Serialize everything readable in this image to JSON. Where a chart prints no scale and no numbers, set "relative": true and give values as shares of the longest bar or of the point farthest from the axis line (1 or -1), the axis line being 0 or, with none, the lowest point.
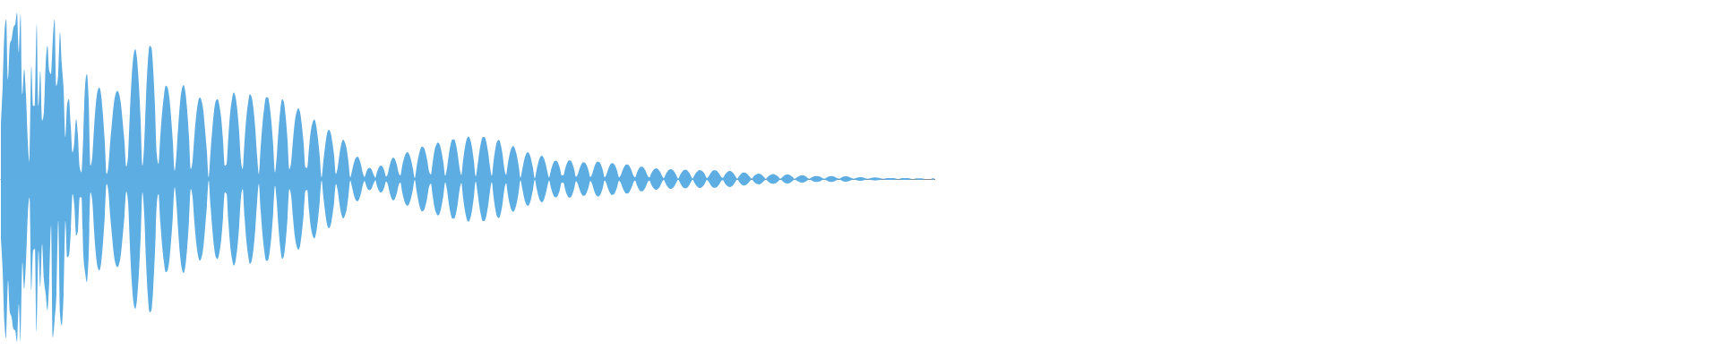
{
  "chart_data": {
    "type": "area",
    "relative": true,
    "categories": [
      null,
      null,
      null,
      null,
      null,
      null,
      null,
      null,
      null,
      null,
      null,
      null,
      null,
      null,
      null,
      null,
      null,
      null,
      null,
      null,
      null,
      null,
      null,
      null,
      null,
      null,
      null,
      null,
      null,
      null,
      null,
      null,
      null,
      null,
      null,
      null,
      null,
      null,
      null,
      null,
      null,
      null,
      null,
      null,
      null,
      null,
      null,
      null,
      null,
      null,
      null,
      null,
      null,
      null,
      null,
      null,
      null,
      null,
      null,
      null,
      null,
      null,
      null,
      null,
      null,
      null,
      null,
      null,
      null,
      null,
      null,
      null,
      null,
      null,
      null,
      null,
      null,
      null,
      null,
      null,
      null,
      null,
      null,
      null,
      null,
      null,
      null,
      null,
      null,
      null,
      null,
      null,
      null,
      null,
      null,
      null,
      null,
      null,
      null,
      null,
      null,
      null,
      null,
      null,
      null,
      null,
      null,
      null,
      null,
      null,
      null,
      null,
      null,
      null,
      null,
      null,
      null,
      null,
      null,
      null,
      null,
      null,
      null,
      null,
      null,
      null,
      null,
      null,
      null,
      null,
      null,
      null,
      null,
      null,
      null,
      null,
      null,
      null,
      null,
      null,
      null,
      null,
      null,
      null,
      null,
      null,
      null,
      null,
      null,
      null,
      null,
      null,
      null,
      null,
      null,
      null,
      null,
      null,
      null,
      null,
      null,
      null,
      null,
      null,
      null,
      null,
      null,
      null,
      null,
      null,
      null,
      null,
      null,
      null,
      null,
      null,
      null,
      null,
      null,
      null,
      null,
      null,
      null,
      null,
      null,
      null,
      null,
      null,
      null,
      null,
      null,
      null,
      null,
      null,
      null,
      null,
      null,
      null,
      null,
      null,
      null,
      null,
      null,
      null,
      null,
      null,
      null,
      null,
      null,
      null,
      null,
      null,
      null,
      null,
      null,
      null,
      null,
      null,
      null,
      null,
      null,
      null,
      null,
      null,
      null,
      null,
      null,
      null,
      null,
      null,
      null,
      null,
      null,
      null,
      null,
      null,
      null,
      null,
      null,
      null,
      null,
      null,
      null,
      null,
      null,
      null,
      null,
      null,
      null,
      null,
      null,
      null,
      null,
      null,
      null,
      null,
      null,
      null,
      null,
      null,
      null,
      null,
      null,
      null,
      null,
      null,
      null,
      null,
      null,
      null,
      null,
      null,
      null,
      null,
      null,
      null,
      null,
      null,
      null,
      null,
      null,
      null,
      null,
      null,
      null,
      null,
      null,
      null,
      null,
      null,
      null,
      null,
      null,
      null,
      null,
      null,
      null,
      null,
      null,
      null,
      null,
      null,
      null,
      null,
      null,
      null,
      null,
      null,
      null,
      null,
      null,
      null,
      null,
      null,
      null,
      null,
      null,
      null,
      null,
      null,
      null,
      null,
      null,
      null,
      null,
      null,
      null,
      null,
      null,
      null,
      null,
      null,
      null,
      null,
      null,
      null,
      null,
      null,
      null,
      null,
      null,
      null,
      null,
      null,
      null,
      null,
      null,
      null,
      null,
      null,
      null,
      null,
      null,
      null,
      null,
      null,
      null,
      null,
      null,
      null,
      null,
      null,
      null,
      null,
      null,
      null,
      null,
      null,
      null,
      null,
      null,
      null,
      null,
      null,
      null,
      null,
      null,
      null,
      null,
      null,
      null,
      null,
      null,
      null,
      null,
      null,
      null,
      null,
      null,
      null,
      null,
      null,
      null,
      null,
      null,
      null,
      null,
      null,
      null,
      null,
      null,
      null,
      null,
      null,
      null,
      null,
      null,
      null,
      null,
      null,
      null,
      null,
      null,
      null,
      null,
      null,
      null,
      null,
      null,
      null,
      null,
      null,
      null,
      null,
      null,
      null,
      null,
      null,
      null,
      null,
      null,
      null,
      null,
      null,
      null,
      null,
      null,
      null,
      null,
      null,
      null,
      null,
      null,
      null,
      null,
      null,
      null,
      null,
      null,
      null,
      null,
      null,
      null,
      null,
      null,
      null,
      null,
      null,
      null,
      null,
      null,
      null,
      null,
      null,
      null,
      null,
      null,
      null,
      null,
      null,
      null,
      null,
      null,
      null,
      null,
      null,
      null,
      null,
      null,
      null,
      null,
      null,
      null,
      null,
      null,
      null,
      null,
      null,
      null,
      null,
      null,
      null,
      null,
      null,
      null,
      null,
      null,
      null,
      null,
      null,
      null,
      null,
      null,
      null,
      null,
      null,
      null,
      null,
      null,
      null,
      null,
      null,
      null,
      null,
      null,
      null,
      null,
      null,
      null,
      null,
      null,
      null
    ],
    "series": [
      {
        "color": "#5dade2",
        "values": [
          0.33,
          0.56,
          0.88,
          0.96,
          0.6,
          0.81,
          0.84,
          0.91,
          0.93,
          1,
          0.76,
          0.99,
          0.51,
          0.66,
          0.51,
          0.23,
          0.1,
          0.68,
          0.44,
          0.44,
          0.93,
          0.44,
          0.65,
          0.35,
          0.4,
          0.69,
          0.8,
          0.65,
          0.63,
          0.84,
          0.96,
          0.56,
          0.63,
          0.88,
          0.69,
          0.54,
          0.25,
          0.45,
          0.48,
          0.32,
          0.16,
          0.22,
          0.36,
          0.26,
          0.07,
          0.04,
          0.26,
          0.56,
          0.63,
          0.47,
          0.08,
          0.13,
          0.31,
          0.45,
          0.53,
          0.55,
          0.5,
          0.38,
          0.22,
          0.03,
          0.075,
          0.22,
          0.34,
          0.45,
          0.51,
          0.53,
          0.51,
          0.45,
          0.34,
          0.22,
          0.075,
          0.14,
          0.4,
          0.61,
          0.74,
          0.78,
          0.72,
          0.57,
          0.35,
          0.08,
          0.21,
          0.49,
          0.7,
          0.8,
          0.79,
          0.66,
          0.44,
          0.15,
          0.09,
          0.26,
          0.4,
          0.5,
          0.56,
          0.55,
          0.49,
          0.37,
          0.22,
          0.05,
          0.15,
          0.32,
          0.46,
          0.54,
          0.565,
          0.52,
          0.41,
          0.25,
          0.06,
          0.11,
          0.26,
          0.38,
          0.46,
          0.49,
          0.47,
          0.41,
          0.29,
          0.16,
          0.01,
          0.16,
          0.3,
          0.41,
          0.47,
          0.48,
          0.44,
          0.36,
          0.23,
          0.08,
          0.09,
          0.26,
          0.4,
          0.48,
          0.52,
          0.49,
          0.41,
          0.28,
          0.11,
          0.06,
          0.23,
          0.37,
          0.46,
          0.51,
          0.49,
          0.42,
          0.3,
          0.14,
          0.03,
          0.19,
          0.33,
          0.43,
          0.49,
          0.49,
          0.44,
          0.34,
          0.2,
          0.04,
          0.14,
          0.3,
          0.42,
          0.48,
          0.46,
          0.37,
          0.23,
          0.06,
          0.1,
          0.23,
          0.34,
          0.4,
          0.425,
          0.4,
          0.32,
          0.21,
          0.07,
          0.066,
          0.19,
          0.29,
          0.34,
          0.357,
          0.32,
          0.24,
          0.13,
          0.01,
          0.11,
          0.2,
          0.27,
          0.296,
          0.28,
          0.22,
          0.14,
          0.03,
          0.07,
          0.15,
          0.21,
          0.237,
          0.22,
          0.18,
          0.1,
          0.01,
          0.05,
          0.095,
          0.125,
          0.134,
          0.12,
          0.085,
          0.036,
          0.012,
          0.043,
          0.063,
          0.067,
          0.054,
          0.027,
          0.008,
          0.044,
          0.07,
          0.081,
          0.074,
          0.05,
          0.015,
          0.034,
          0.082,
          0.116,
          0.129,
          0.117,
          0.085,
          0.036,
          0.021,
          0.079,
          0.124,
          0.153,
          0.161,
          0.145,
          0.11,
          0.06,
          0.005,
          0.07,
          0.13,
          0.175,
          0.195,
          0.19,
          0.16,
          0.11,
          0.046,
          0.028,
          0.1,
          0.17,
          0.206,
          0.219,
          0.204,
          0.16,
          0.097,
          0.02,
          0.066,
          0.147,
          0.207,
          0.238,
          0.238,
          0.207,
          0.146,
          0.066,
          0.024,
          0.115,
          0.19,
          0.24,
          0.256,
          0.236,
          0.185,
          0.107,
          0.015,
          0.078,
          0.16,
          0.22,
          0.253,
          0.251,
          0.218,
          0.156,
          0.072,
          0.019,
          0.11,
          0.183,
          0.227,
          0.235,
          0.206,
          0.147,
          0.062,
          0.025,
          0.095,
          0.152,
          0.187,
          0.197,
          0.179,
          0.14,
          0.079,
          0.008,
          0.056,
          0.111,
          0.147,
          0.161,
          0.15,
          0.115,
          0.063,
          0.004,
          0.055,
          0.101,
          0.132,
          0.14,
          0.126,
          0.093,
          0.045,
          0.009,
          0.052,
          0.087,
          0.107,
          0.11,
          0.095,
          0.064,
          0.022,
          0.023,
          0.064,
          0.096,
          0.112,
          0.11,
          0.09,
          0.057,
          0.013,
          0.028,
          0.063,
          0.089,
          0.101,
          0.098,
          0.08,
          0.05,
          0.012,
          0.029,
          0.066,
          0.093,
          0.105,
          0.102,
          0.083,
          0.051,
          0.01,
          0.028,
          0.061,
          0.085,
          0.096,
          0.093,
          0.076,
          0.047,
          0.011,
          0.023,
          0.053,
          0.075,
          0.087,
          0.086,
          0.074,
          0.051,
          0.021,
          0.01,
          0.038,
          0.06,
          0.073,
          0.074,
          0.065,
          0.045,
          0.019,
          0.009,
          0.033,
          0.051,
          0.062,
          0.065,
          0.057,
          0.041,
          0.019,
          0.006,
          0.027,
          0.045,
          0.056,
          0.059,
          0.054,
          0.041,
          0.022,
          0.003,
          0.022,
          0.04,
          0.053,
          0.057,
          0.053,
          0.04,
          0.022,
          0.003,
          0.02,
          0.037,
          0.049,
          0.054,
          0.051,
          0.041,
          0.025,
          0.005,
          0.015,
          0.033,
          0.047,
          0.053,
          0.053,
          0.045,
          0.031,
          0.012,
          0.007,
          0.024,
          0.038,
          0.046,
          0.048,
          0.043,
          0.032,
          0.016,
          0.002,
          0.016,
          0.029,
          0.037,
          0.039,
          0.035,
          0.026,
          0.013,
          0.002,
          0.014,
          0.024,
          0.03,
          0.032,
          0.029,
          0.022,
          0.011,
          0.001,
          0.012,
          0.021,
          0.027,
          0.029,
          0.027,
          0.021,
          0.012,
          0.001,
          0.009,
          0.019,
          0.025,
          0.027,
          0.025,
          0.019,
          0.011,
          0.001,
          0.008,
          0.015,
          0.02,
          0.022,
          0.021,
          0.016,
          0.009,
          0.001,
          0.006,
          0.012,
          0.016,
          0.018,
          0.017,
          0.015,
          0.01,
          0.003,
          0.003,
          0.01,
          0.015,
          0.018,
          0.018,
          0.015,
          0.01,
          0.004,
          0.002,
          0.008,
          0.013,
          0.016,
          0.016,
          0.014,
          0.01,
          0.005,
          0.001,
          0.005,
          0.008,
          0.011,
          0.011,
          0.01,
          0.007,
          0.003,
          0.001,
          0.004,
          0.007,
          0.008,
          0.009,
          0.008,
          0.007,
          0.004,
          0.001,
          0.002,
          0.004,
          0.005,
          0.005,
          0.005,
          0.005,
          0.004,
          0.002,
          0,
          0.003,
          0.005,
          0.005,
          0.005,
          0.005,
          0.004,
          0.002,
          0,
          0.002,
          0.004,
          0.004,
          0.004,
          0.004,
          0.002,
          0,
          0,
          0,
          0,
          0.004,
          0.004
        ]
      },
      {
        "color": "#5caee3",
        "values": [
          -0.36,
          -0.55,
          -0.87,
          -0.96,
          -0.61,
          -0.8,
          -0.83,
          -0.9,
          -0.91,
          -0.98,
          -0.75,
          -0.98,
          -0.5,
          -0.66,
          -0.5,
          -0.22,
          -0.11,
          -0.67,
          -0.43,
          -0.42,
          -0.92,
          -0.43,
          -0.65,
          -0.39,
          -0.6,
          -0.69,
          -0.79,
          -0.61,
          -0.28,
          -0.95,
          -0.85,
          -0.69,
          -0.25,
          -0.81,
          -0.88,
          -0.69,
          -0.25,
          -0.47,
          -0.46,
          -0.32,
          -0.09,
          -0.16,
          -0.34,
          -0.31,
          -0.11,
          -0.11,
          -0.45,
          -0.56,
          -0.62,
          -0.46,
          -0.08,
          -0.13,
          -0.31,
          -0.45,
          -0.53,
          -0.55,
          -0.5,
          -0.38,
          -0.22,
          -0.03,
          -0.075,
          -0.22,
          -0.34,
          -0.45,
          -0.51,
          -0.53,
          -0.51,
          -0.45,
          -0.34,
          -0.22,
          -0.075,
          -0.14,
          -0.4,
          -0.61,
          -0.74,
          -0.78,
          -0.72,
          -0.57,
          -0.35,
          -0.08,
          -0.21,
          -0.49,
          -0.7,
          -0.8,
          -0.79,
          -0.66,
          -0.44,
          -0.15,
          -0.09,
          -0.26,
          -0.4,
          -0.5,
          -0.56,
          -0.55,
          -0.49,
          -0.37,
          -0.22,
          -0.05,
          -0.15,
          -0.32,
          -0.46,
          -0.54,
          -0.565,
          -0.52,
          -0.41,
          -0.25,
          -0.06,
          -0.11,
          -0.26,
          -0.38,
          -0.46,
          -0.49,
          -0.47,
          -0.41,
          -0.29,
          -0.16,
          -0.01,
          -0.16,
          -0.3,
          -0.41,
          -0.47,
          -0.48,
          -0.44,
          -0.36,
          -0.23,
          -0.08,
          -0.09,
          -0.26,
          -0.4,
          -0.48,
          -0.52,
          -0.49,
          -0.41,
          -0.28,
          -0.11,
          -0.06,
          -0.23,
          -0.37,
          -0.46,
          -0.51,
          -0.49,
          -0.42,
          -0.3,
          -0.14,
          -0.03,
          -0.19,
          -0.33,
          -0.43,
          -0.49,
          -0.49,
          -0.44,
          -0.34,
          -0.2,
          -0.04,
          -0.14,
          -0.3,
          -0.42,
          -0.48,
          -0.46,
          -0.37,
          -0.23,
          -0.06,
          -0.1,
          -0.23,
          -0.34,
          -0.4,
          -0.425,
          -0.4,
          -0.32,
          -0.21,
          -0.07,
          -0.066,
          -0.19,
          -0.29,
          -0.34,
          -0.357,
          -0.32,
          -0.24,
          -0.13,
          -0.01,
          -0.11,
          -0.2,
          -0.27,
          -0.296,
          -0.28,
          -0.22,
          -0.14,
          -0.03,
          -0.07,
          -0.15,
          -0.21,
          -0.237,
          -0.22,
          -0.18,
          -0.1,
          -0.01,
          -0.05,
          -0.095,
          -0.125,
          -0.134,
          -0.12,
          -0.085,
          -0.036,
          -0.012,
          -0.043,
          -0.063,
          -0.067,
          -0.054,
          -0.027,
          -0.008,
          -0.044,
          -0.07,
          -0.081,
          -0.074,
          -0.05,
          -0.015,
          -0.034,
          -0.082,
          -0.116,
          -0.129,
          -0.117,
          -0.085,
          -0.036,
          -0.021,
          -0.079,
          -0.124,
          -0.153,
          -0.161,
          -0.145,
          -0.11,
          -0.06,
          -0.005,
          -0.07,
          -0.13,
          -0.175,
          -0.195,
          -0.19,
          -0.16,
          -0.11,
          -0.046,
          -0.028,
          -0.1,
          -0.17,
          -0.206,
          -0.219,
          -0.204,
          -0.16,
          -0.097,
          -0.02,
          -0.066,
          -0.147,
          -0.207,
          -0.238,
          -0.238,
          -0.207,
          -0.146,
          -0.066,
          -0.024,
          -0.115,
          -0.19,
          -0.24,
          -0.256,
          -0.236,
          -0.185,
          -0.107,
          -0.015,
          -0.078,
          -0.16,
          -0.22,
          -0.253,
          -0.251,
          -0.218,
          -0.156,
          -0.072,
          -0.019,
          -0.11,
          -0.183,
          -0.227,
          -0.235,
          -0.206,
          -0.147,
          -0.062,
          -0.025,
          -0.095,
          -0.152,
          -0.187,
          -0.197,
          -0.179,
          -0.14,
          -0.079,
          -0.008,
          -0.056,
          -0.111,
          -0.147,
          -0.161,
          -0.15,
          -0.115,
          -0.063,
          -0.004,
          -0.055,
          -0.101,
          -0.132,
          -0.14,
          -0.126,
          -0.093,
          -0.045,
          -0.009,
          -0.052,
          -0.087,
          -0.107,
          -0.11,
          -0.095,
          -0.064,
          -0.022,
          -0.023,
          -0.064,
          -0.096,
          -0.112,
          -0.11,
          -0.09,
          -0.057,
          -0.013,
          -0.028,
          -0.063,
          -0.089,
          -0.101,
          -0.098,
          -0.08,
          -0.05,
          -0.012,
          -0.029,
          -0.066,
          -0.093,
          -0.105,
          -0.102,
          -0.083,
          -0.051,
          -0.01,
          -0.028,
          -0.061,
          -0.085,
          -0.096,
          -0.093,
          -0.076,
          -0.047,
          -0.011,
          -0.023,
          -0.053,
          -0.075,
          -0.087,
          -0.086,
          -0.074,
          -0.051,
          -0.021,
          -0.01,
          -0.038,
          -0.06,
          -0.073,
          -0.074,
          -0.065,
          -0.045,
          -0.019,
          -0.009,
          -0.033,
          -0.051,
          -0.062,
          -0.065,
          -0.057,
          -0.041,
          -0.019,
          -0.006,
          -0.027,
          -0.045,
          -0.056,
          -0.059,
          -0.054,
          -0.041,
          -0.022,
          -0.003,
          -0.022,
          -0.04,
          -0.053,
          -0.057,
          -0.053,
          -0.04,
          -0.022,
          -0.003,
          -0.02,
          -0.037,
          -0.049,
          -0.054,
          -0.051,
          -0.041,
          -0.025,
          -0.005,
          -0.015,
          -0.033,
          -0.047,
          -0.053,
          -0.053,
          -0.045,
          -0.031,
          -0.012,
          -0.007,
          -0.024,
          -0.038,
          -0.046,
          -0.048,
          -0.043,
          -0.032,
          -0.016,
          -0.002,
          -0.016,
          -0.029,
          -0.037,
          -0.039,
          -0.035,
          -0.026,
          -0.013,
          -0.002,
          -0.014,
          -0.024,
          -0.03,
          -0.032,
          -0.029,
          -0.022,
          -0.011,
          -0.001,
          -0.012,
          -0.021,
          -0.027,
          -0.029,
          -0.027,
          -0.021,
          -0.012,
          -0.001,
          -0.009,
          -0.019,
          -0.025,
          -0.027,
          -0.025,
          -0.019,
          -0.011,
          -0.001,
          -0.008,
          -0.015,
          -0.02,
          -0.022,
          -0.021,
          -0.016,
          -0.009,
          -0.001,
          -0.006,
          -0.012,
          -0.016,
          -0.018,
          -0.017,
          -0.015,
          -0.01,
          -0.003,
          -0.003,
          -0.01,
          -0.015,
          -0.018,
          -0.018,
          -0.015,
          -0.01,
          -0.004,
          -0.002,
          -0.008,
          -0.013,
          -0.016,
          -0.016,
          -0.014,
          -0.01,
          -0.005,
          -0.001,
          -0.005,
          -0.008,
          -0.011,
          -0.011,
          -0.01,
          -0.007,
          -0.003,
          -0.001,
          -0.004,
          -0.007,
          -0.008,
          -0.009,
          -0.008,
          -0.007,
          -0.004,
          -0.001,
          -0.002,
          -0.004,
          -0.005,
          -0.005,
          -0.005,
          -0.005,
          -0.004,
          -0.002,
          0,
          -0.003,
          -0.005,
          -0.005,
          -0.005,
          -0.005,
          -0.004,
          -0.002,
          0,
          -0.002,
          -0.004,
          -0.004,
          -0.004,
          -0.004,
          -0.002,
          0,
          0,
          0,
          0,
          -0.004,
          -0.004
        ]
      }
    ]
  }
}
